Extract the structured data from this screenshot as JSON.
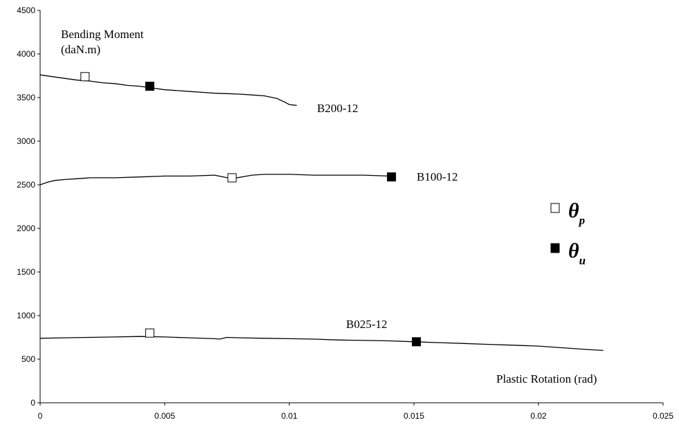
{
  "chart_data": {
    "type": "line",
    "title": "",
    "xlabel": "Plastic Rotation (rad)",
    "ylabel_lines": [
      "Bending Moment",
      "(daN.m)"
    ],
    "xlim": [
      0,
      0.025
    ],
    "ylim": [
      0,
      4500
    ],
    "x_ticks": [
      0,
      0.005,
      0.01,
      0.015,
      0.02,
      0.025
    ],
    "x_tick_labels": [
      "0",
      "0.005",
      "0.01",
      "0.015",
      "0.02",
      "0.025"
    ],
    "y_ticks": [
      0,
      500,
      1000,
      1500,
      2000,
      2500,
      3000,
      3500,
      4000,
      4500
    ],
    "y_tick_labels": [
      "0",
      "500",
      "1000",
      "1500",
      "2000",
      "2500",
      "3000",
      "3500",
      "4000",
      "4500"
    ],
    "grid": false,
    "series": [
      {
        "name": "B200-12",
        "x": [
          0,
          0.0005,
          0.001,
          0.0015,
          0.002,
          0.0025,
          0.003,
          0.0035,
          0.004,
          0.0045,
          0.005,
          0.0055,
          0.006,
          0.0065,
          0.007,
          0.0075,
          0.008,
          0.0085,
          0.009,
          0.0095,
          0.0098,
          0.01,
          0.0103
        ],
        "y": [
          3760,
          3740,
          3720,
          3700,
          3690,
          3670,
          3660,
          3640,
          3630,
          3610,
          3590,
          3580,
          3570,
          3560,
          3550,
          3545,
          3540,
          3530,
          3520,
          3490,
          3450,
          3420,
          3410
        ],
        "theta_p": [
          0.0018,
          3740
        ],
        "theta_u": [
          0.0044,
          3630
        ]
      },
      {
        "name": "B100-12",
        "x": [
          0,
          0.0003,
          0.0006,
          0.001,
          0.0015,
          0.002,
          0.003,
          0.004,
          0.005,
          0.006,
          0.007,
          0.0077,
          0.0085,
          0.009,
          0.01,
          0.011,
          0.012,
          0.013,
          0.014,
          0.0142
        ],
        "y": [
          2500,
          2530,
          2550,
          2560,
          2570,
          2580,
          2580,
          2590,
          2600,
          2600,
          2610,
          2570,
          2610,
          2620,
          2620,
          2610,
          2610,
          2610,
          2600,
          2590
        ],
        "theta_p": [
          0.0077,
          2580
        ],
        "theta_u": [
          0.0141,
          2590
        ]
      },
      {
        "name": "B025-12",
        "x": [
          0,
          0.001,
          0.002,
          0.003,
          0.004,
          0.005,
          0.006,
          0.007,
          0.0072,
          0.0075,
          0.008,
          0.009,
          0.01,
          0.011,
          0.012,
          0.013,
          0.014,
          0.015,
          0.016,
          0.017,
          0.018,
          0.019,
          0.02,
          0.021,
          0.022,
          0.0226
        ],
        "y": [
          740,
          745,
          750,
          755,
          760,
          755,
          745,
          735,
          730,
          750,
          745,
          740,
          735,
          730,
          720,
          715,
          710,
          700,
          690,
          680,
          670,
          660,
          650,
          630,
          610,
          600
        ],
        "theta_p": [
          0.0044,
          800
        ],
        "theta_u": [
          0.0151,
          700
        ]
      }
    ],
    "legend": {
      "position": "right",
      "items": [
        {
          "marker": "open-square",
          "symbol": "θ",
          "subscript": "p"
        },
        {
          "marker": "filled-square",
          "symbol": "θ",
          "subscript": "u"
        }
      ]
    }
  }
}
